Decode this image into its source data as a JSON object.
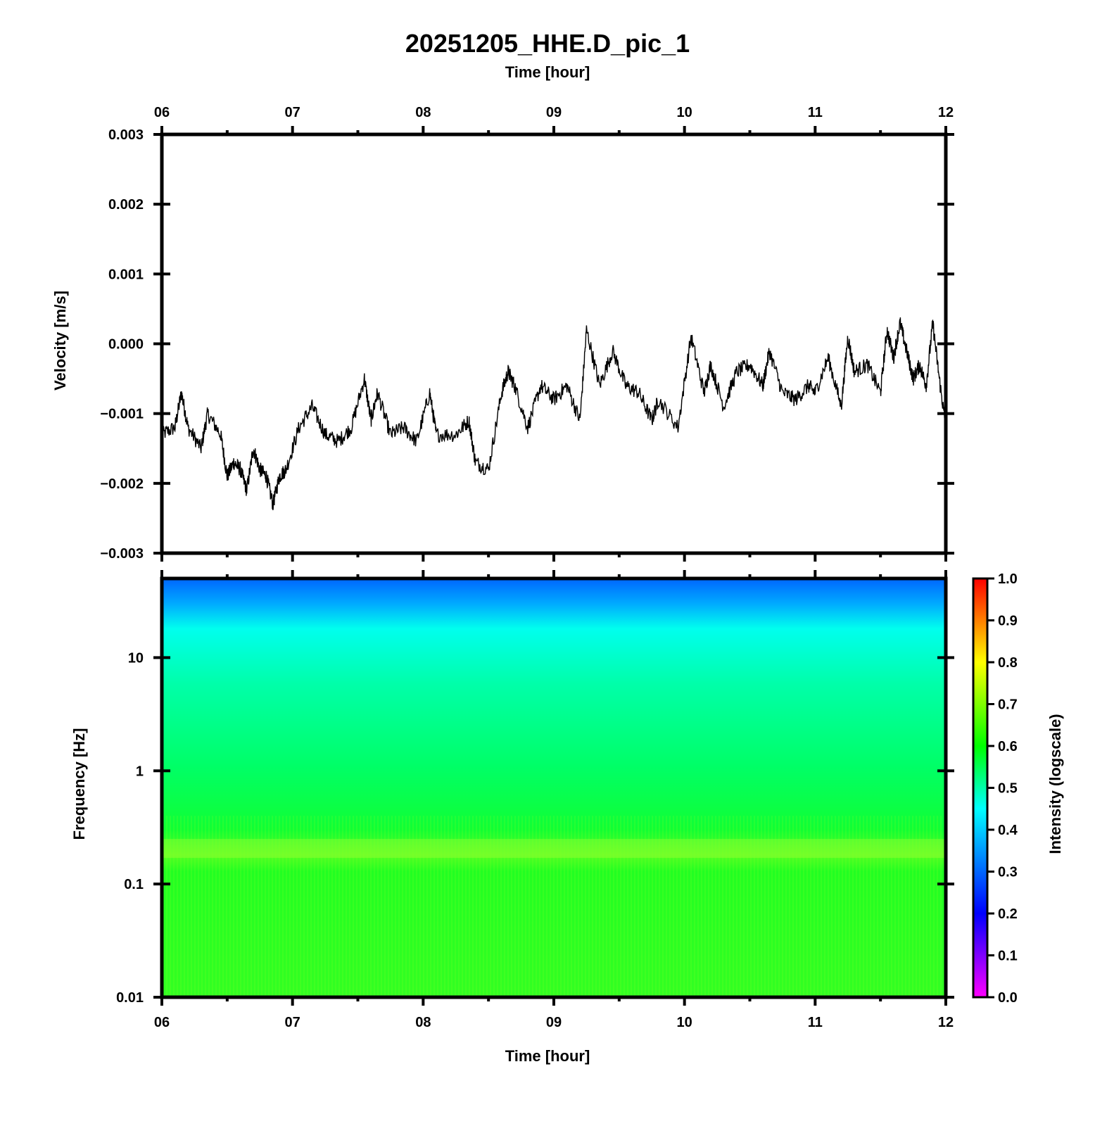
{
  "title": "20251205_HHE.D_pic_1",
  "top_xlabel": "Time [hour]",
  "bottom_xlabel": "Time [hour]",
  "colors": {
    "axis": "#000000",
    "trace": "#000000",
    "background": "#ffffff"
  },
  "chart_data": [
    {
      "type": "line",
      "panel": "waveform",
      "ylabel": "Velocity [m/s]",
      "xlabel": "Time [hour]",
      "xlim": [
        6,
        12
      ],
      "ylim": [
        -0.003,
        0.003
      ],
      "x_ticks": [
        "06",
        "07",
        "08",
        "09",
        "10",
        "11",
        "12"
      ],
      "y_ticks": [
        "0.003",
        "0.002",
        "0.001",
        "0.000",
        "−0.001",
        "−0.002",
        "−0.003"
      ],
      "series": [
        {
          "x": [
            6.0,
            6.1,
            6.15,
            6.2,
            6.3,
            6.35,
            6.45,
            6.5,
            6.55,
            6.6,
            6.65,
            6.7,
            6.75,
            6.8,
            6.85,
            6.9,
            6.95,
            7.05,
            7.15,
            7.25,
            7.35,
            7.45,
            7.55,
            7.6,
            7.65,
            7.75,
            7.85,
            7.95,
            8.05,
            8.1,
            8.25,
            8.35,
            8.4,
            8.5,
            8.6,
            8.65,
            8.7,
            8.8,
            8.9,
            9.0,
            9.1,
            9.2,
            9.25,
            9.35,
            9.45,
            9.55,
            9.65,
            9.75,
            9.8,
            9.95,
            10.05,
            10.15,
            10.2,
            10.3,
            10.4,
            10.5,
            10.6,
            10.65,
            10.75,
            10.85,
            10.95,
            11.0,
            11.1,
            11.2,
            11.25,
            11.3,
            11.4,
            11.5,
            11.55,
            11.6,
            11.65,
            11.7,
            11.75,
            11.8,
            11.85,
            11.9,
            11.95,
            12.0
          ],
          "y": [
            -0.0013,
            -0.0012,
            -0.0007,
            -0.0012,
            -0.0015,
            -0.001,
            -0.0013,
            -0.0019,
            -0.0017,
            -0.0018,
            -0.0021,
            -0.0015,
            -0.0018,
            -0.0019,
            -0.0023,
            -0.0019,
            -0.0018,
            -0.0012,
            -0.0009,
            -0.0013,
            -0.0014,
            -0.0012,
            -0.0005,
            -0.0011,
            -0.0007,
            -0.0013,
            -0.0012,
            -0.0014,
            -0.0007,
            -0.0013,
            -0.0013,
            -0.0011,
            -0.0017,
            -0.0018,
            -0.0007,
            -0.0004,
            -0.0006,
            -0.0012,
            -0.0006,
            -0.0008,
            -0.0006,
            -0.0011,
            0.0002,
            -0.0006,
            -0.0001,
            -0.0006,
            -0.0007,
            -0.0011,
            -0.0008,
            -0.0012,
            0.0001,
            -0.0007,
            -0.0003,
            -0.0009,
            -0.0004,
            -0.0003,
            -0.0006,
            -0.0001,
            -0.0007,
            -0.0008,
            -0.0006,
            -0.0007,
            -0.0002,
            -0.0009,
            0.0001,
            -0.0004,
            -0.0003,
            -0.0007,
            0.0002,
            -0.0002,
            0.0003,
            -0.0001,
            -0.0005,
            -0.0003,
            -0.0006,
            0.0003,
            -0.0005,
            -0.0012
          ]
        }
      ]
    },
    {
      "type": "heatmap",
      "panel": "spectrogram",
      "ylabel": "Frequency [Hz]",
      "xlabel": "Time [hour]",
      "xlim": [
        6,
        12
      ],
      "ylim": [
        0.01,
        50
      ],
      "y_scale": "log",
      "x_ticks": [
        "06",
        "07",
        "08",
        "09",
        "10",
        "11",
        "12"
      ],
      "y_ticks": [
        "10",
        "1",
        "0.1",
        "0.01"
      ],
      "colorbar": {
        "label": "Intensity (logscale)",
        "ticks": [
          "1.0",
          "0.9",
          "0.8",
          "0.7",
          "0.6",
          "0.5",
          "0.4",
          "0.3",
          "0.2",
          "0.1",
          "0.0"
        ],
        "range": [
          0,
          1
        ],
        "colors": [
          "#ff00ff",
          "#0000ff",
          "#00a0ff",
          "#00ffff",
          "#00ff00",
          "#ffff00",
          "#ff0000"
        ]
      },
      "intensity_profile": {
        "frequency_hz": [
          50,
          30,
          15,
          5,
          1,
          0.4,
          0.2,
          0.1,
          0.01
        ],
        "intensity": [
          0.33,
          0.4,
          0.45,
          0.5,
          0.53,
          0.55,
          0.6,
          0.57,
          0.58
        ]
      }
    }
  ]
}
